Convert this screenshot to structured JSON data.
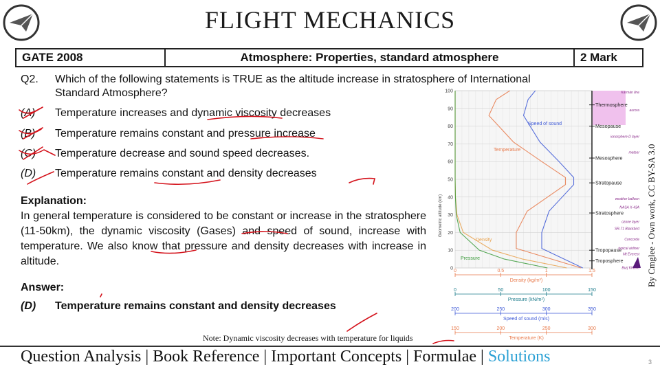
{
  "title": "FLIGHT MECHANICS",
  "header": {
    "exam": "GATE 2008",
    "topic": "Atmosphere: Properties, standard atmosphere",
    "marks": "2 Mark"
  },
  "question": {
    "number": "Q2.",
    "text_line1": "Which of the following statements is TRUE as the altitude increase in stratosphere of International",
    "text_line2": "Standard Atmosphere?",
    "options": [
      {
        "key": "(A)",
        "text": "Temperature increases and dynamic viscosity decreases"
      },
      {
        "key": "(B)",
        "text": "Temperature remains constant and pressure increase"
      },
      {
        "key": "(C)",
        "text": "Temperature decrease and sound speed decreases."
      },
      {
        "key": "(D)",
        "text": "Temperature remains constant and density decreases"
      }
    ]
  },
  "explanation": {
    "heading": "Explanation:",
    "text": "In general temperature is considered to be constant or increase in the stratosphere (11-50km), the dynamic viscosity (Gases) and speed of sound, increase with temperature. We also know that pressure and density decreases with increase in altitude."
  },
  "answer": {
    "heading": "Answer:",
    "key": "(D)",
    "text": "Temperature remains constant and density decreases"
  },
  "note": "Note: Dynamic viscosity decreases with temperature for liquids",
  "footer": {
    "items": [
      "Question Analysis",
      "Book Reference",
      "Important Concepts",
      "Formulae"
    ],
    "separator": " | ",
    "active": "Solutions"
  },
  "page_number": "3",
  "credit": "By Cmglee - Own work, CC BY-SA 3.0",
  "colors": {
    "accent": "#2aa0d4",
    "annotation_red": "#d4121b",
    "temperature": "#e8794a",
    "speed_of_sound": "#3b57d6",
    "density": "#e8a04a",
    "pressure": "#3a9a3a",
    "layer_panel": "#e9a6e6"
  },
  "chart_data": {
    "type": "line",
    "ylabel": "Geometric altitude (km)",
    "y_ticks": [
      "100",
      "90",
      "80",
      "70",
      "60",
      "50",
      "40",
      "30",
      "20",
      "10",
      "0"
    ],
    "ylim": [
      0,
      100
    ],
    "series": [
      {
        "name": "Temperature",
        "x_unit": "K",
        "points": [
          [
            288,
            0
          ],
          [
            217,
            11
          ],
          [
            217,
            20
          ],
          [
            229,
            32
          ],
          [
            271,
            47
          ],
          [
            271,
            51
          ],
          [
            245,
            60
          ],
          [
            214,
            71
          ],
          [
            187,
            86
          ],
          [
            195,
            95
          ],
          [
            210,
            100
          ]
        ]
      },
      {
        "name": "Speed of sound",
        "x_unit": "m/s",
        "points": [
          [
            340,
            0
          ],
          [
            295,
            11
          ],
          [
            295,
            20
          ],
          [
            303,
            32
          ],
          [
            330,
            47
          ],
          [
            330,
            51
          ],
          [
            314,
            60
          ],
          [
            293,
            71
          ],
          [
            275,
            86
          ],
          [
            280,
            95
          ],
          [
            288,
            100
          ]
        ]
      },
      {
        "name": "Density",
        "x_unit": "kg/m3",
        "points": [
          [
            1.225,
            0
          ],
          [
            0.74,
            5
          ],
          [
            0.41,
            10
          ],
          [
            0.09,
            20
          ],
          [
            0.02,
            30
          ],
          [
            0.004,
            40
          ],
          [
            0,
            50
          ],
          [
            0,
            100
          ]
        ]
      },
      {
        "name": "Pressure",
        "x_unit": "kN/m2",
        "points": [
          [
            101.3,
            0
          ],
          [
            54,
            5
          ],
          [
            26.5,
            10
          ],
          [
            5.5,
            20
          ],
          [
            1.2,
            30
          ],
          [
            0.3,
            40
          ],
          [
            0,
            50
          ],
          [
            0,
            100
          ]
        ]
      }
    ],
    "x_axes": [
      {
        "label": "Density (kg/m³)",
        "ticks": [
          "0",
          "0.5",
          "1",
          "1.5"
        ],
        "range": [
          0,
          1.5
        ]
      },
      {
        "label": "Pressure (kN/m²)",
        "ticks": [
          "0",
          "50",
          "100",
          "150"
        ],
        "range": [
          0,
          150
        ]
      },
      {
        "label": "Speed of sound (m/s)",
        "ticks": [
          "200",
          "250",
          "300",
          "350"
        ],
        "range": [
          200,
          350
        ]
      },
      {
        "label": "Temperature (K)",
        "ticks": [
          "150",
          "200",
          "250",
          "300"
        ],
        "range": [
          150,
          300
        ]
      }
    ],
    "layers": [
      {
        "name": "Thermosphere",
        "altitude": 92
      },
      {
        "name": "Mesopause",
        "altitude": 80
      },
      {
        "name": "Mesosphere",
        "altitude": 62
      },
      {
        "name": "Stratopause",
        "altitude": 48
      },
      {
        "name": "Stratosphere",
        "altitude": 31
      },
      {
        "name": "Tropopause",
        "altitude": 10
      },
      {
        "name": "Troposphere",
        "altitude": 4
      }
    ],
    "markers": [
      {
        "name": "Kármán line",
        "altitude": 100
      },
      {
        "name": "aurora",
        "altitude": 90
      },
      {
        "name": "ionosphere D layer",
        "altitude": 75
      },
      {
        "name": "meteor",
        "altitude": 66
      },
      {
        "name": "weather balloon",
        "altitude": 40
      },
      {
        "name": "NASA X-43A",
        "altitude": 35
      },
      {
        "name": "ozone layer",
        "altitude": 27
      },
      {
        "name": "SR-71 Blackbird",
        "altitude": 23
      },
      {
        "name": "Concorde",
        "altitude": 17
      },
      {
        "name": "typical airliner",
        "altitude": 12
      },
      {
        "name": "Mt Everest",
        "altitude": 8.8
      },
      {
        "name": "Burj Khalifa",
        "altitude": 1
      }
    ]
  }
}
